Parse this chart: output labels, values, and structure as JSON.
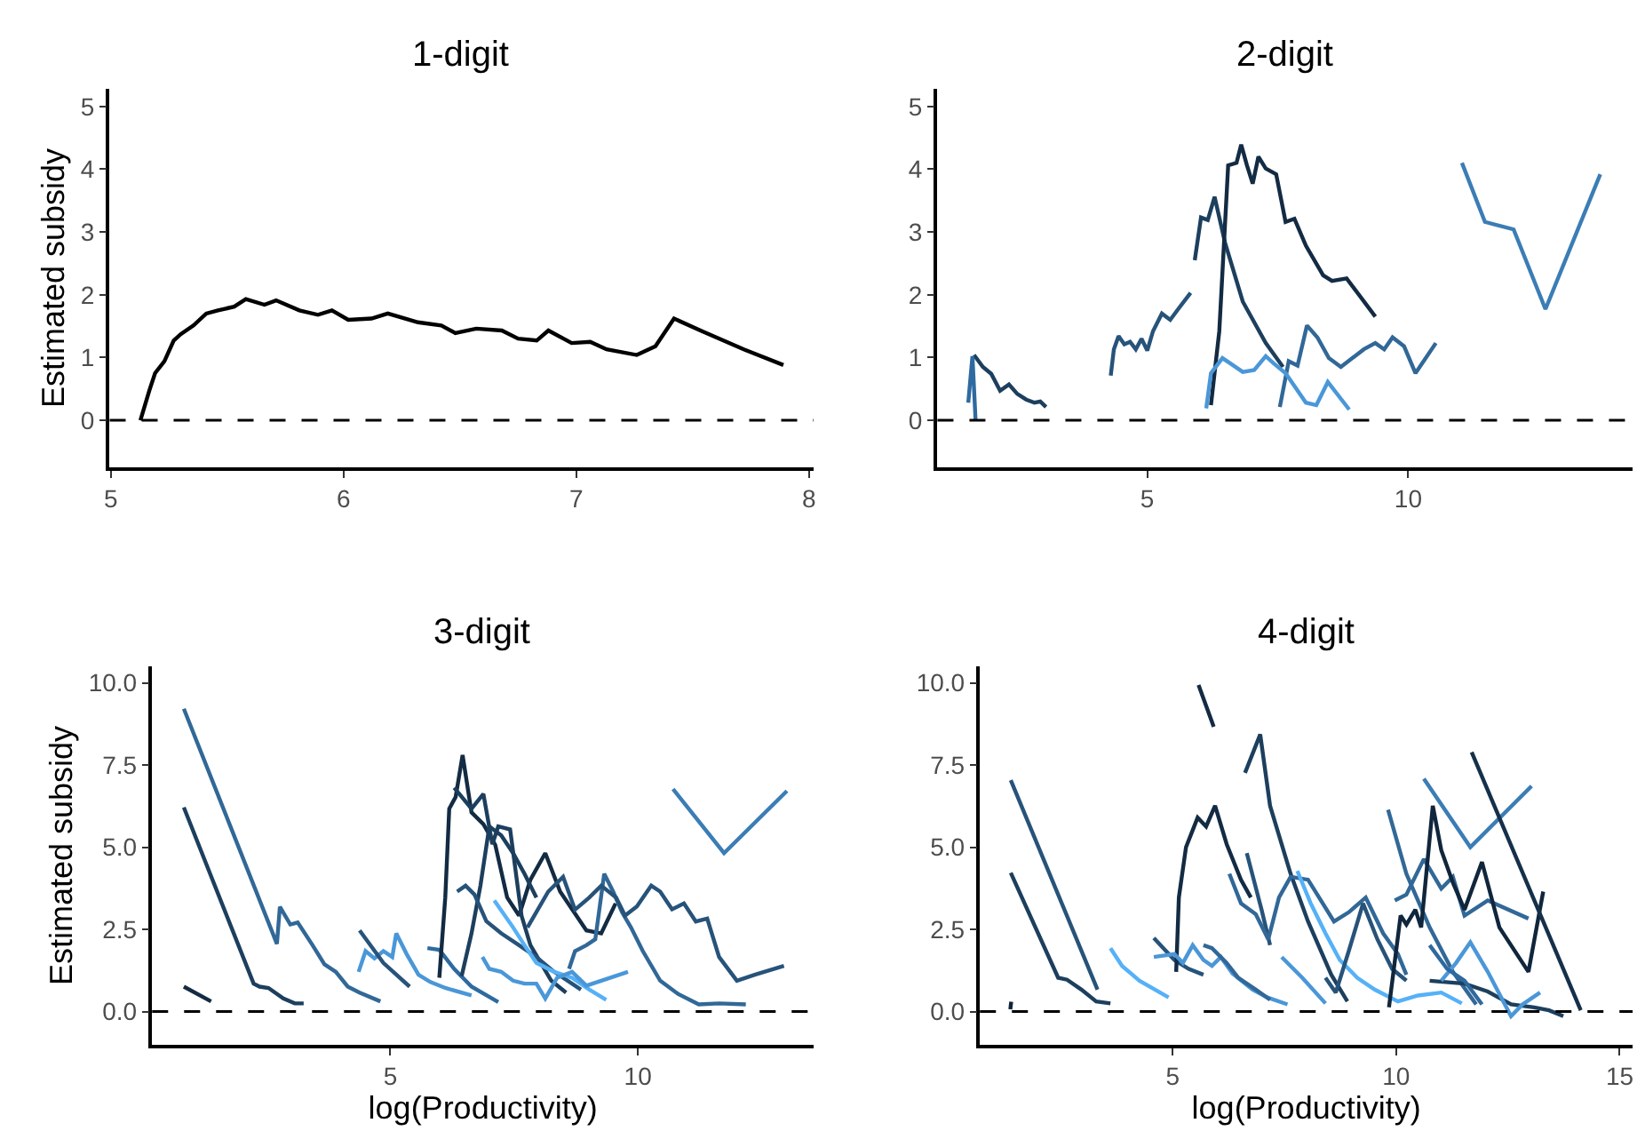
{
  "chart_data": [
    {
      "type": "line",
      "title": "1-digit",
      "ylabel": "Estimated subsidy",
      "xlim": [
        4.995,
        8.02
      ],
      "ylim": [
        -0.75,
        5.28
      ],
      "xticks": [
        5,
        6,
        7,
        8
      ],
      "yticks": [
        0,
        1,
        2,
        3,
        4,
        5
      ],
      "ref_lines": [
        {
          "axis": "y",
          "value": 0,
          "color": "#000000",
          "line_style": "dashed"
        }
      ],
      "series": [
        {
          "color": "#000000",
          "x": [
            5.127,
            5.165,
            5.19,
            5.23,
            5.27,
            5.3,
            5.355,
            5.41,
            5.46,
            5.53,
            5.58,
            5.66,
            5.71,
            5.81,
            5.89,
            5.95,
            6.02,
            6.12,
            6.19,
            6.32,
            6.42,
            6.48,
            6.57,
            6.68,
            6.75,
            6.83,
            6.88,
            6.98,
            7.06,
            7.13,
            7.26,
            7.34,
            7.42,
            7.54,
            7.72,
            7.89
          ],
          "values": [
            0.0,
            0.47,
            0.75,
            0.94,
            1.27,
            1.37,
            1.51,
            1.7,
            1.75,
            1.81,
            1.93,
            1.84,
            1.91,
            1.75,
            1.68,
            1.75,
            1.6,
            1.62,
            1.7,
            1.56,
            1.51,
            1.39,
            1.46,
            1.43,
            1.3,
            1.27,
            1.43,
            1.23,
            1.25,
            1.13,
            1.04,
            1.18,
            1.62,
            1.42,
            1.13,
            0.88
          ]
        }
      ]
    },
    {
      "type": "line",
      "title": "2-digit",
      "xlim": [
        0.98,
        14.3
      ],
      "ylim": [
        -0.75,
        5.28
      ],
      "xticks": [
        5,
        10
      ],
      "yticks": [
        0,
        1,
        2,
        3,
        4,
        5
      ],
      "ref_lines": [
        {
          "axis": "y",
          "value": 0,
          "color": "#000000",
          "line_style": "dashed"
        }
      ],
      "series": [
        {
          "color": "#1d3f5e",
          "x": [
            1.68,
            1.85,
            2.01,
            2.18,
            2.35,
            2.51,
            2.68,
            2.84,
            2.95,
            3.06
          ],
          "values": [
            1.04,
            0.85,
            0.74,
            0.47,
            0.57,
            0.42,
            0.33,
            0.28,
            0.3,
            0.21
          ]
        },
        {
          "color": "#2e6aa0",
          "x": [
            1.57,
            1.65,
            1.71
          ],
          "values": [
            0.28,
            1.02,
            0.0
          ]
        },
        {
          "color": "#27537a",
          "x": [
            4.3,
            4.36,
            4.45,
            4.56,
            4.67,
            4.78,
            4.89,
            5.0,
            5.11,
            5.28,
            5.44,
            5.61,
            5.83
          ],
          "values": [
            0.71,
            1.13,
            1.34,
            1.21,
            1.25,
            1.13,
            1.3,
            1.11,
            1.42,
            1.7,
            1.6,
            1.79,
            2.03
          ]
        },
        {
          "color": "#1d3f5e",
          "x": [
            5.91,
            6.03,
            6.16,
            6.29,
            6.49,
            6.83,
            7.27,
            7.6
          ],
          "values": [
            2.55,
            3.23,
            3.19,
            3.56,
            2.83,
            1.89,
            1.23,
            0.85
          ]
        },
        {
          "color": "#132b43",
          "x": [
            6.22,
            6.38,
            6.55,
            6.71,
            6.8,
            6.91,
            7.02,
            7.13,
            7.27,
            7.47,
            7.65,
            7.82,
            8.04,
            8.37,
            8.54,
            8.82,
            9.37
          ],
          "values": [
            0.24,
            1.42,
            4.06,
            4.1,
            4.39,
            4.06,
            3.77,
            4.2,
            4.01,
            3.92,
            3.16,
            3.21,
            2.78,
            2.31,
            2.22,
            2.26,
            1.65
          ]
        },
        {
          "color": "#316897",
          "x": [
            7.54,
            7.71,
            7.88,
            8.06,
            8.26,
            8.48,
            8.71,
            8.93,
            9.15,
            9.37,
            9.54,
            9.7,
            9.92,
            10.14,
            10.53
          ],
          "values": [
            0.21,
            0.94,
            0.87,
            1.51,
            1.32,
            0.99,
            0.85,
            0.99,
            1.13,
            1.23,
            1.13,
            1.32,
            1.18,
            0.75,
            1.23
          ]
        },
        {
          "color": "#4a97d8",
          "x": [
            6.13,
            6.22,
            6.44,
            6.6,
            6.83,
            7.05,
            7.27,
            7.43,
            7.65,
            8.04,
            8.24,
            8.46,
            8.87
          ],
          "values": [
            0.19,
            0.75,
            0.99,
            0.9,
            0.77,
            0.8,
            1.02,
            0.9,
            0.75,
            0.28,
            0.24,
            0.61,
            0.17
          ]
        },
        {
          "color": "#3b7db5",
          "x": [
            11.03,
            11.47,
            12.02,
            12.63,
            13.68
          ],
          "values": [
            4.1,
            3.16,
            3.04,
            1.77,
            3.92
          ]
        }
      ]
    },
    {
      "type": "line",
      "title": "3-digit",
      "xlabel": "log(Productivity)",
      "ylabel": "Estimated subsidy",
      "xlim": [
        0.19,
        13.55
      ],
      "ylim": [
        -1.01,
        10.5
      ],
      "xticks": [
        5,
        10
      ],
      "yticks": [
        {
          "value": 0,
          "label": "0.0"
        },
        {
          "value": 2.5,
          "label": "2.5"
        },
        {
          "value": 5,
          "label": "5.0"
        },
        {
          "value": 7.5,
          "label": "7.5"
        },
        {
          "value": 10,
          "label": "10.0"
        }
      ],
      "ref_lines": [
        {
          "axis": "y",
          "value": 0,
          "color": "#000000",
          "line_style": "dashed"
        }
      ],
      "series": [
        {
          "color": "#132b43",
          "x": [
            0.83,
            1.38
          ],
          "values": [
            0.76,
            0.31
          ]
        },
        {
          "color": "#1d3f5e",
          "x": [
            0.83,
            2.24,
            2.36,
            2.54,
            2.84,
            3.07,
            3.25
          ],
          "values": [
            6.21,
            0.85,
            0.76,
            0.72,
            0.4,
            0.25,
            0.25
          ]
        },
        {
          "color": "#316897",
          "x": [
            0.83,
            2.71,
            2.77,
            2.98,
            3.13,
            3.43,
            3.67,
            3.9,
            4.14,
            4.38,
            4.8
          ],
          "values": [
            9.21,
            2.06,
            3.19,
            2.65,
            2.71,
            2.02,
            1.44,
            1.21,
            0.76,
            0.58,
            0.31
          ]
        },
        {
          "color": "#4a97d8",
          "x": [
            4.36,
            4.5,
            4.68,
            4.86,
            5.04,
            5.12,
            5.33,
            5.57,
            5.81,
            6.11,
            6.64
          ],
          "values": [
            1.21,
            1.84,
            1.62,
            1.84,
            1.66,
            2.38,
            1.75,
            1.12,
            0.9,
            0.72,
            0.49
          ]
        },
        {
          "color": "#27537a",
          "x": [
            4.38,
            4.86,
            5.39
          ],
          "values": [
            2.47,
            1.48,
            0.76
          ]
        },
        {
          "color": "#2e6aa0",
          "x": [
            5.75,
            5.99,
            6.29,
            6.64,
            7.18
          ],
          "values": [
            1.93,
            1.88,
            1.3,
            0.76,
            0.29
          ]
        },
        {
          "color": "#132b43",
          "x": [
            5.99,
            6.11,
            6.19,
            6.32,
            6.46,
            6.64,
            6.88,
            7.12,
            7.36,
            7.6,
            7.83,
            8.13,
            8.43,
            8.96,
            9.26,
            9.55
          ],
          "values": [
            1.03,
            3.47,
            6.17,
            6.53,
            7.8,
            6.06,
            5.7,
            5.07,
            3.47,
            2.92,
            4.01,
            4.82,
            3.65,
            2.47,
            2.38,
            3.29
          ]
        },
        {
          "color": "#1d3f5e",
          "x": [
            6.29,
            6.64,
            6.88,
            7.06,
            7.18,
            7.42,
            7.65,
            7.83,
            8.25,
            8.55
          ],
          "values": [
            6.81,
            6.17,
            6.62,
            5.09,
            5.63,
            5.54,
            2.92,
            2.02,
            0.94,
            0.58
          ]
        },
        {
          "color": "#1d3f5e",
          "x": [
            6.44,
            6.64,
            6.82,
            7.0,
            7.24,
            7.48,
            7.71,
            7.95
          ],
          "values": [
            1.08,
            2.38,
            3.83,
            5.63,
            5.36,
            4.82,
            4.19,
            3.47
          ]
        },
        {
          "color": "#27537a",
          "x": [
            6.35,
            6.52,
            6.7,
            6.94,
            7.24,
            7.6,
            7.95,
            8.31,
            8.85
          ],
          "values": [
            3.65,
            3.83,
            3.56,
            2.75,
            2.38,
            2.02,
            1.66,
            1.21,
            0.67
          ]
        },
        {
          "color": "#56b1f7",
          "x": [
            7.1,
            7.48,
            7.71,
            7.95,
            8.31,
            8.67,
            9.02,
            9.36
          ],
          "values": [
            3.38,
            2.56,
            2.02,
            1.48,
            1.21,
            1.03,
            0.67,
            0.36
          ]
        },
        {
          "color": "#4a97d8",
          "x": [
            6.86,
            7.0,
            7.24,
            7.48,
            7.71,
            7.95,
            8.13,
            8.37,
            8.67,
            8.96,
            9.26,
            9.8
          ],
          "values": [
            1.66,
            1.3,
            1.21,
            0.94,
            0.85,
            0.85,
            0.4,
            1.03,
            1.21,
            0.79,
            0.94,
            1.21
          ]
        },
        {
          "color": "#316897",
          "x": [
            8.61,
            8.73,
            8.96,
            9.14,
            9.32,
            9.5,
            9.68,
            9.86,
            10.1,
            10.45,
            10.81,
            11.23,
            11.64,
            12.18
          ],
          "values": [
            1.3,
            1.84,
            2.02,
            2.2,
            4.19,
            3.65,
            3.02,
            2.56,
            1.84,
            0.94,
            0.54,
            0.22,
            0.25,
            0.22
          ]
        },
        {
          "color": "#27537a",
          "x": [
            7.77,
            8.19,
            8.49,
            8.73,
            9.02,
            9.26,
            9.56,
            9.74,
            9.98,
            10.27,
            10.45,
            10.69,
            10.93,
            11.17,
            11.4,
            11.64,
            12.0,
            12.36,
            12.95
          ],
          "values": [
            2.56,
            3.65,
            4.1,
            3.1,
            3.47,
            3.83,
            3.47,
            2.92,
            3.2,
            3.83,
            3.65,
            3.11,
            3.29,
            2.74,
            2.83,
            1.66,
            0.94,
            1.12,
            1.39
          ]
        },
        {
          "color": "#3b7db5",
          "x": [
            10.71,
            11.74,
            13.01
          ],
          "values": [
            6.77,
            4.82,
            6.71
          ]
        }
      ]
    },
    {
      "type": "line",
      "title": "4-digit",
      "xlabel": "log(Productivity)",
      "xlim": [
        0.69,
        15.29
      ],
      "ylim": [
        -1.01,
        10.5
      ],
      "xticks": [
        5,
        10,
        15
      ],
      "yticks": [
        {
          "value": 0,
          "label": "0.0"
        },
        {
          "value": 2.5,
          "label": "2.5"
        },
        {
          "value": 5,
          "label": "5.0"
        },
        {
          "value": 7.5,
          "label": "7.5"
        },
        {
          "value": 10,
          "label": "10.0"
        }
      ],
      "ref_lines": [
        {
          "axis": "y",
          "value": 0,
          "color": "#000000",
          "line_style": "dashed"
        }
      ],
      "series": [
        {
          "color": "#1d3f5e",
          "x": [
            1.38,
            2.44,
            2.64,
            2.96,
            3.29,
            3.61
          ],
          "values": [
            4.22,
            1.03,
            0.97,
            0.67,
            0.31,
            0.25
          ]
        },
        {
          "color": "#27537a",
          "x": [
            1.38,
            3.32
          ],
          "values": [
            7.04,
            0.67
          ]
        },
        {
          "color": "#56b1f7",
          "x": [
            3.61,
            3.87,
            4.26,
            4.91
          ],
          "values": [
            1.93,
            1.39,
            0.94,
            0.43
          ]
        },
        {
          "color": "#27537a",
          "x": [
            4.58,
            5.04,
            5.36,
            5.69
          ],
          "values": [
            2.24,
            1.57,
            1.3,
            1.12
          ]
        },
        {
          "color": "#132b43",
          "x": [
            5.08,
            5.14,
            5.3,
            5.43,
            5.56,
            5.75,
            5.95,
            6.21,
            6.53,
            6.75
          ],
          "values": [
            1.21,
            3.47,
            5.0,
            5.45,
            5.9,
            5.63,
            6.26,
            5.09,
            4.01,
            3.47
          ]
        },
        {
          "color": "#4a97d8",
          "x": [
            4.58,
            5.04,
            5.23,
            5.45,
            5.69,
            5.88,
            6.08,
            6.34,
            6.79,
            7.12,
            7.57
          ],
          "values": [
            1.66,
            1.75,
            1.48,
            2.02,
            1.57,
            1.39,
            1.66,
            1.16,
            0.67,
            0.43,
            0.22
          ]
        },
        {
          "color": "#316897",
          "x": [
            5.69,
            5.88,
            6.21,
            6.47,
            6.86,
            7.18
          ],
          "values": [
            2.02,
            1.93,
            1.48,
            1.03,
            0.67,
            0.36
          ]
        },
        {
          "color": "#132b43",
          "x": [
            5.58,
            5.92
          ],
          "values": [
            9.93,
            8.66
          ]
        },
        {
          "color": "#1d3f5e",
          "x": [
            6.62,
            6.96,
            7.18,
            7.64,
            8.03,
            8.55,
            8.91
          ],
          "values": [
            7.26,
            8.43,
            6.26,
            4.19,
            2.74,
            1.12,
            0.31
          ]
        },
        {
          "color": "#27537a",
          "x": [
            6.66,
            6.99,
            7.18
          ],
          "values": [
            4.82,
            3.1,
            2.02
          ]
        },
        {
          "color": "#316897",
          "x": [
            6.27,
            6.53,
            6.86,
            7.14,
            7.38,
            7.64,
            8.03,
            8.61,
            8.94,
            9.32,
            9.71,
            10.04,
            10.23
          ],
          "values": [
            4.19,
            3.29,
            2.96,
            2.2,
            3.47,
            4.1,
            4.01,
            2.74,
            3.02,
            3.47,
            2.38,
            1.75,
            1.12
          ]
        },
        {
          "color": "#56b1f7",
          "x": [
            7.79,
            8.09,
            8.42,
            8.74,
            9.13,
            9.52,
            10.04,
            10.49,
            11.01,
            11.47
          ],
          "values": [
            4.28,
            3.29,
            2.38,
            1.57,
            1.03,
            0.67,
            0.31,
            0.49,
            0.58,
            0.25
          ]
        },
        {
          "color": "#4a97d8",
          "x": [
            7.44,
            7.9,
            8.42
          ],
          "values": [
            1.66,
            1.03,
            0.25
          ]
        },
        {
          "color": "#27537a",
          "x": [
            8.42,
            8.65,
            8.94,
            9.26,
            9.58,
            9.91,
            10.23
          ],
          "values": [
            1.03,
            0.58,
            1.84,
            3.29,
            2.2,
            1.3,
            0.94
          ]
        },
        {
          "color": "#316897",
          "x": [
            9.82,
            10.23,
            10.75,
            11.27,
            11.79
          ],
          "values": [
            6.14,
            4.19,
            2.56,
            1.21,
            0.22
          ]
        },
        {
          "color": "#316897",
          "x": [
            9.97,
            10.23,
            10.62,
            11.01,
            11.27,
            11.53,
            12.05,
            12.96
          ],
          "values": [
            3.38,
            3.56,
            4.64,
            3.74,
            4.1,
            2.92,
            3.38,
            2.83
          ]
        },
        {
          "color": "#1d3f5e",
          "x": [
            10.75,
            11.53,
            12.05,
            12.57,
            13.09,
            13.42,
            13.74
          ],
          "values": [
            0.94,
            0.85,
            0.61,
            0.22,
            0.13,
            0.04,
            -0.14
          ]
        },
        {
          "color": "#3b7db5",
          "x": [
            10.62,
            11.66,
            13.03
          ],
          "values": [
            7.08,
            5.0,
            6.86
          ]
        },
        {
          "color": "#4a97d8",
          "x": [
            11.01,
            11.34,
            11.66,
            12.05,
            12.57,
            12.83,
            13.22
          ],
          "values": [
            0.94,
            1.48,
            2.11,
            1.21,
            -0.14,
            0.22,
            0.58
          ]
        },
        {
          "color": "#2e6aa0",
          "x": [
            10.75,
            11.14,
            11.53,
            11.92
          ],
          "values": [
            2.02,
            1.3,
            0.94,
            0.22
          ]
        },
        {
          "color": "#0f2438",
          "x": [
            1.37,
            1.39
          ],
          "values": [
            0.07,
            0.3
          ]
        },
        {
          "color": "#10263c",
          "x": [
            9.84,
            10.1,
            10.23,
            10.43,
            10.56,
            10.82,
            11.01,
            11.27,
            11.53,
            11.92,
            12.31,
            12.96,
            13.29
          ],
          "values": [
            0.13,
            2.92,
            2.65,
            3.1,
            2.56,
            6.26,
            4.91,
            3.92,
            3.1,
            4.55,
            2.56,
            1.21,
            3.65
          ]
        },
        {
          "color": "#15304a",
          "x": [
            11.69,
            14.13
          ],
          "values": [
            7.89,
            0.04
          ]
        }
      ]
    }
  ]
}
